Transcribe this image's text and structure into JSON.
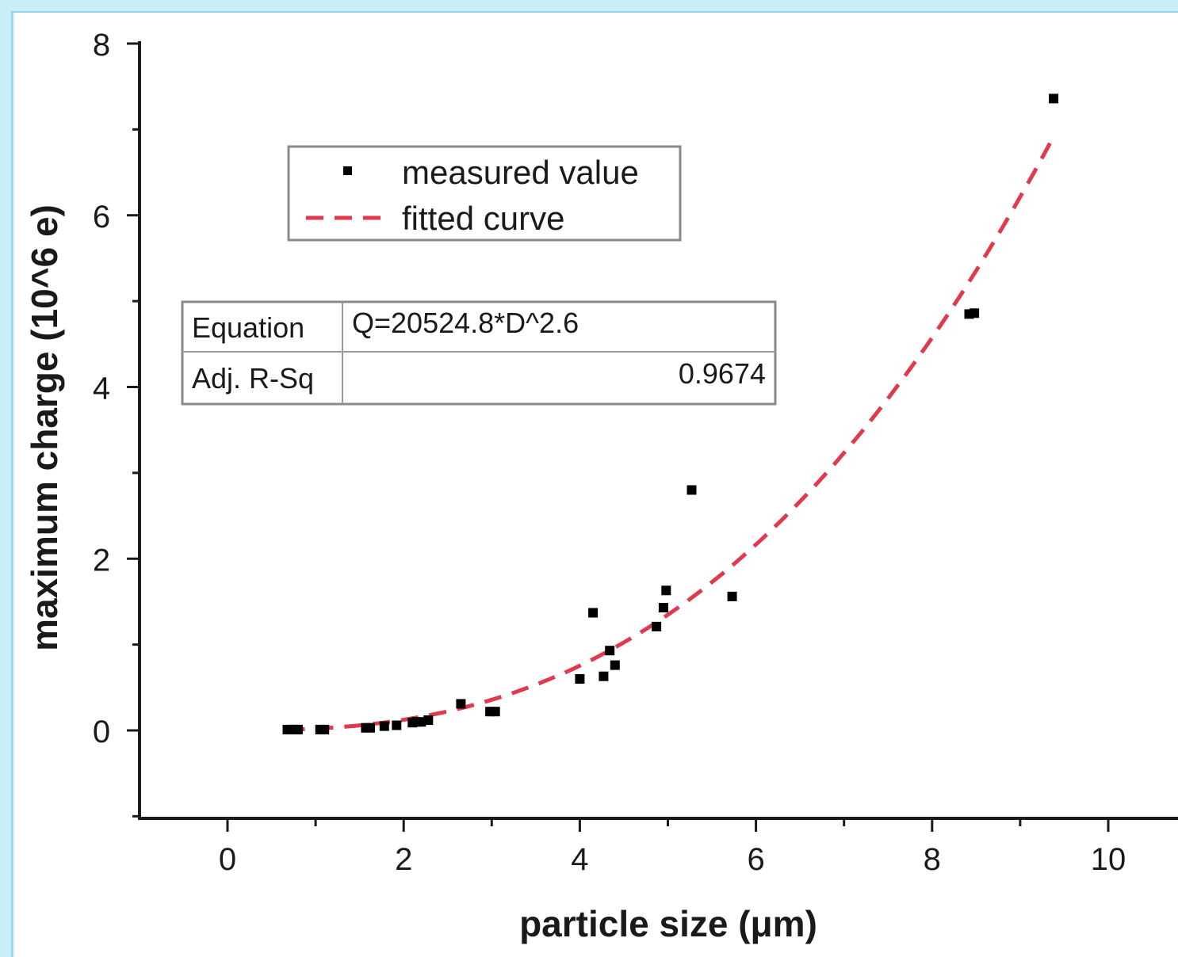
{
  "chart_data": {
    "type": "scatter",
    "xlabel": "particle size (μm)",
    "ylabel": "maximum charge (10^6 e)",
    "xlim": [
      -1,
      11
    ],
    "ylim": [
      -1,
      8
    ],
    "x_ticks": [
      "0",
      "2",
      "4",
      "6",
      "8",
      "10"
    ],
    "y_ticks": [
      "0",
      "2",
      "4",
      "6",
      "8"
    ],
    "legend_position": "upper-left",
    "series": [
      {
        "name": "measured value",
        "kind": "points",
        "color": "#000000",
        "x": [
          0.68,
          0.72,
          0.77,
          0.8,
          1.05,
          1.1,
          1.57,
          1.62,
          1.78,
          1.92,
          2.1,
          2.14,
          2.2,
          2.28,
          2.65,
          2.98,
          3.04,
          4.0,
          4.15,
          4.27,
          4.34,
          4.4,
          4.87,
          4.95,
          4.98,
          5.27,
          5.73,
          8.42,
          8.48,
          9.38
        ],
        "y": [
          0.01,
          0.01,
          0.01,
          0.01,
          0.01,
          0.01,
          0.03,
          0.03,
          0.05,
          0.06,
          0.09,
          0.1,
          0.1,
          0.12,
          0.31,
          0.22,
          0.22,
          0.6,
          1.37,
          0.63,
          0.93,
          0.76,
          1.21,
          1.43,
          1.63,
          2.8,
          1.56,
          4.85,
          4.86,
          7.36
        ]
      },
      {
        "name": "fitted curve",
        "kind": "fit",
        "color": "#e03a4e",
        "coefficient": 20524.8,
        "exponent": 2.6,
        "x_range": [
          0.68,
          9.38
        ]
      }
    ],
    "fit_table": {
      "equation_label": "Equation",
      "equation_value": "Q=20524.8*D^2.6",
      "r2_label": "Adj. R-Sq",
      "r2_value": "0.9674"
    }
  }
}
